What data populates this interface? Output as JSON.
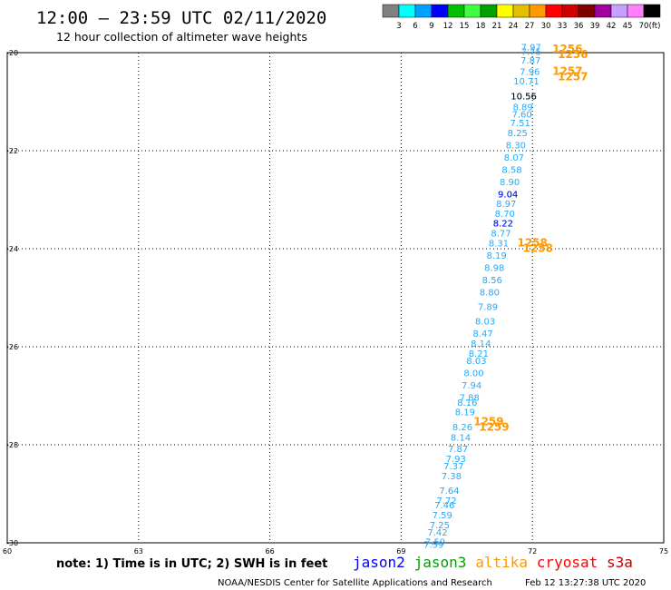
{
  "header": {
    "title": "12:00 – 23:59 UTC 02/11/2020",
    "subtitle": "12 hour collection of altimeter wave heights"
  },
  "colorbar": {
    "colors": [
      "#808080",
      "#00ffff",
      "#00a0ff",
      "#0000ff",
      "#00c000",
      "#40ff40",
      "#00a000",
      "#ffff00",
      "#e0c000",
      "#ff9900",
      "#ff0000",
      "#d00000",
      "#800000",
      "#a000a0",
      "#c8a0ff",
      "#ff80ff",
      "#000000"
    ],
    "labels": [
      "3",
      "6",
      "9",
      "12",
      "15",
      "18",
      "21",
      "24",
      "27",
      "30",
      "33",
      "36",
      "39",
      "42",
      "45",
      "70",
      "(ft)"
    ]
  },
  "note": "note: 1) Time is in UTC; 2) SWH is in feet",
  "legend": [
    {
      "name": "jason2",
      "color": "#0000ff"
    },
    {
      "name": "jason3",
      "color": "#00a000"
    },
    {
      "name": "altika",
      "color": "#ff9900"
    },
    {
      "name": "cryosat",
      "color": "#ff0000"
    },
    {
      "name": "s3a",
      "color": "#c00000"
    }
  ],
  "footer": {
    "credit": "NOAA/NESDIS Center for Satellite Applications and Research",
    "timestamp": "Feb 12 13:27:38 UTC 2020"
  },
  "chart_data": {
    "type": "scatter",
    "title": "12:00 – 23:59 UTC 02/11/2020",
    "xlim": [
      60,
      75
    ],
    "ylim": [
      -30,
      -20
    ],
    "xticks": [
      60,
      63,
      66,
      69,
      72,
      75
    ],
    "yticks": [
      -20,
      -22,
      -24,
      -26,
      -28,
      -30
    ],
    "grid": true,
    "series": [
      {
        "name": "jason3",
        "color": "#22aaff",
        "points": [
          {
            "x": 71.97,
            "y": -19.95,
            "label": "7.97"
          },
          {
            "x": 71.97,
            "y": -20.05,
            "label": "7.75"
          },
          {
            "x": 71.96,
            "y": -20.22,
            "label": "7.87"
          },
          {
            "x": 71.94,
            "y": -20.45,
            "label": "7.96"
          },
          {
            "x": 71.86,
            "y": -20.65,
            "label": "10.71"
          },
          {
            "x": 71.8,
            "y": -20.95,
            "label": "10.56"
          },
          {
            "x": 71.78,
            "y": -21.18,
            "label": "8.89"
          },
          {
            "x": 71.76,
            "y": -21.32,
            "label": "7.60"
          },
          {
            "x": 71.72,
            "y": -21.5,
            "label": "7.51"
          },
          {
            "x": 71.66,
            "y": -21.7,
            "label": "8.25"
          },
          {
            "x": 71.62,
            "y": -21.95,
            "label": "8.30"
          },
          {
            "x": 71.58,
            "y": -22.2,
            "label": "8.07"
          },
          {
            "x": 71.53,
            "y": -22.45,
            "label": "8.58"
          },
          {
            "x": 71.48,
            "y": -22.7,
            "label": "8.90"
          },
          {
            "x": 71.44,
            "y": -22.95,
            "label": "9.04"
          },
          {
            "x": 71.4,
            "y": -23.15,
            "label": "8.97"
          },
          {
            "x": 71.37,
            "y": -23.35,
            "label": "8.70"
          },
          {
            "x": 71.33,
            "y": -23.55,
            "label": "8.22"
          },
          {
            "x": 71.28,
            "y": -23.75,
            "label": "8.77"
          },
          {
            "x": 71.23,
            "y": -23.95,
            "label": "8.31"
          },
          {
            "x": 71.18,
            "y": -24.2,
            "label": "8.19"
          },
          {
            "x": 71.13,
            "y": -24.45,
            "label": "8.98"
          },
          {
            "x": 71.08,
            "y": -24.7,
            "label": "8.56"
          },
          {
            "x": 71.02,
            "y": -24.95,
            "label": "8.80"
          },
          {
            "x": 70.98,
            "y": -25.25,
            "label": "7.89"
          },
          {
            "x": 70.92,
            "y": -25.55,
            "label": "8.03"
          },
          {
            "x": 70.87,
            "y": -25.8,
            "label": "8.47"
          },
          {
            "x": 70.82,
            "y": -26.0,
            "label": "8.14"
          },
          {
            "x": 70.77,
            "y": -26.2,
            "label": "8.21"
          },
          {
            "x": 70.72,
            "y": -26.35,
            "label": "8.03"
          },
          {
            "x": 70.66,
            "y": -26.6,
            "label": "8.00"
          },
          {
            "x": 70.61,
            "y": -26.85,
            "label": "7.94"
          },
          {
            "x": 70.56,
            "y": -27.1,
            "label": "7.88"
          },
          {
            "x": 70.51,
            "y": -27.2,
            "label": "8.16"
          },
          {
            "x": 70.46,
            "y": -27.4,
            "label": "8.19"
          },
          {
            "x": 70.4,
            "y": -27.7,
            "label": "8.26"
          },
          {
            "x": 70.36,
            "y": -27.92,
            "label": "8.14"
          },
          {
            "x": 70.3,
            "y": -28.15,
            "label": "7.87"
          },
          {
            "x": 70.25,
            "y": -28.35,
            "label": "7.93"
          },
          {
            "x": 70.2,
            "y": -28.5,
            "label": "7.37"
          },
          {
            "x": 70.15,
            "y": -28.7,
            "label": "7.38"
          },
          {
            "x": 70.1,
            "y": -29.0,
            "label": "7.64"
          },
          {
            "x": 70.04,
            "y": -29.2,
            "label": "7.72"
          },
          {
            "x": 69.99,
            "y": -29.3,
            "label": "7.46"
          },
          {
            "x": 69.94,
            "y": -29.5,
            "label": "7.59"
          },
          {
            "x": 69.88,
            "y": -29.7,
            "label": "7.25"
          },
          {
            "x": 69.83,
            "y": -29.85,
            "label": "7.42"
          },
          {
            "x": 69.78,
            "y": -30.05,
            "label": "7.59"
          },
          {
            "x": 69.74,
            "y": -30.1,
            "label": "7.59"
          }
        ]
      },
      {
        "name": "jason2",
        "color": "#0000ff",
        "points": [
          {
            "x": 71.44,
            "y": -22.95,
            "label": "9.04"
          },
          {
            "x": 71.33,
            "y": -23.55,
            "label": "8.22"
          }
        ]
      },
      {
        "name": "altika",
        "color": "#ff9900",
        "points": [
          {
            "x": 72.8,
            "y": -20.0,
            "label": "1256"
          },
          {
            "x": 72.8,
            "y": -20.45,
            "label": "1257"
          },
          {
            "x": 72.0,
            "y": -23.95,
            "label": "1258"
          },
          {
            "x": 71.0,
            "y": -27.6,
            "label": "1259"
          }
        ]
      },
      {
        "name": "s3a",
        "color": "#000000",
        "points": [
          {
            "x": 71.8,
            "y": -20.95,
            "label": "10.56"
          }
        ]
      }
    ]
  }
}
